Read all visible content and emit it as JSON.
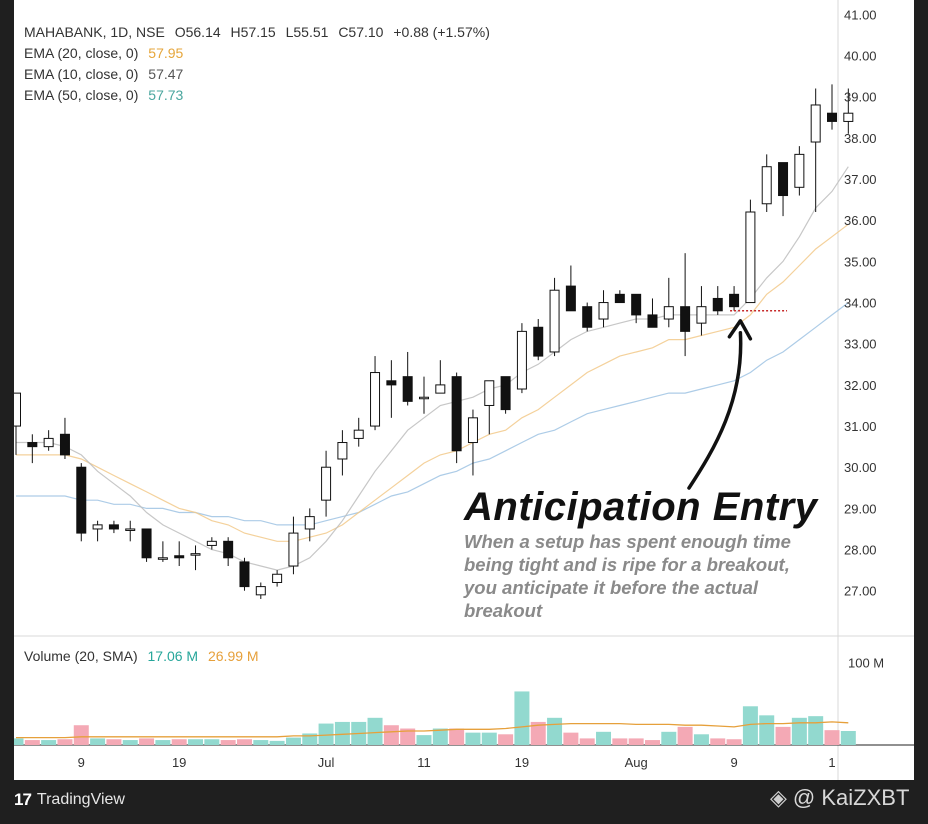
{
  "header": {
    "symbol": "MAHABANK, 1D, NSE",
    "open": "O56.14",
    "high": "H57.15",
    "low": "L55.51",
    "close": "C57.10",
    "change": "+0.88 (+1.57%)"
  },
  "ema": [
    {
      "label": "EMA (20, close, 0)",
      "value": "57.95",
      "color": "#e6a63b"
    },
    {
      "label": "EMA (10, close, 0)",
      "value": "57.47",
      "color": "#555555"
    },
    {
      "label": "EMA (50, close, 0)",
      "value": "57.73",
      "color": "#4aa69e"
    }
  ],
  "volume_legend": {
    "label": "Volume (20, SMA)",
    "v1": "17.06 M",
    "v1_color": "#26a69a",
    "v2": "26.99 M",
    "v2_color": "#e6a03b"
  },
  "annotation": {
    "title": "Anticipation Entry",
    "body": "When a setup has spent enough time being tight and is ripe for a breakout, you anticipate it before the actual breakout"
  },
  "footer": {
    "brand": "TradingView",
    "watermark": "@ KaiZXBT"
  },
  "chart_data": {
    "type": "candlestick",
    "price_axis_ticks": [
      "27.00",
      "28.00",
      "29.00",
      "30.00",
      "31.00",
      "32.00",
      "33.00",
      "34.00",
      "35.00",
      "36.00",
      "37.00",
      "38.00",
      "39.00",
      "40.00",
      "41.00"
    ],
    "price_range": [
      25.9,
      41.35
    ],
    "volume_axis_tick": "100 M",
    "x_ticks": [
      "9",
      "19",
      "Jul",
      "11",
      "19",
      "Aug",
      "9",
      "1"
    ],
    "x_tick_index": [
      4,
      10,
      19,
      25,
      31,
      38,
      44,
      50
    ],
    "candles": [
      {
        "o": 31.0,
        "h": 31.8,
        "l": 30.3,
        "c": 31.8
      },
      {
        "o": 30.6,
        "h": 30.8,
        "l": 30.1,
        "c": 30.5
      },
      {
        "o": 30.5,
        "h": 30.9,
        "l": 30.4,
        "c": 30.7
      },
      {
        "o": 30.8,
        "h": 31.2,
        "l": 30.2,
        "c": 30.3
      },
      {
        "o": 30.0,
        "h": 30.1,
        "l": 28.2,
        "c": 28.4
      },
      {
        "o": 28.5,
        "h": 28.7,
        "l": 28.2,
        "c": 28.6
      },
      {
        "o": 28.6,
        "h": 28.7,
        "l": 28.4,
        "c": 28.5
      },
      {
        "o": 28.5,
        "h": 28.7,
        "l": 28.2,
        "c": 28.5
      },
      {
        "o": 28.5,
        "h": 28.5,
        "l": 27.7,
        "c": 27.8
      },
      {
        "o": 27.8,
        "h": 28.2,
        "l": 27.7,
        "c": 27.8
      },
      {
        "o": 27.85,
        "h": 28.2,
        "l": 27.6,
        "c": 27.8
      },
      {
        "o": 27.9,
        "h": 28.1,
        "l": 27.5,
        "c": 27.9
      },
      {
        "o": 28.1,
        "h": 28.3,
        "l": 28.0,
        "c": 28.2
      },
      {
        "o": 28.2,
        "h": 28.3,
        "l": 27.6,
        "c": 27.8
      },
      {
        "o": 27.7,
        "h": 27.8,
        "l": 27.0,
        "c": 27.1
      },
      {
        "o": 26.9,
        "h": 27.2,
        "l": 26.8,
        "c": 27.1
      },
      {
        "o": 27.2,
        "h": 27.5,
        "l": 27.1,
        "c": 27.4
      },
      {
        "o": 27.6,
        "h": 28.8,
        "l": 27.4,
        "c": 28.4
      },
      {
        "o": 28.5,
        "h": 29.0,
        "l": 28.2,
        "c": 28.8
      },
      {
        "o": 29.2,
        "h": 30.4,
        "l": 28.8,
        "c": 30.0
      },
      {
        "o": 30.2,
        "h": 30.9,
        "l": 29.8,
        "c": 30.6
      },
      {
        "o": 30.7,
        "h": 31.2,
        "l": 30.5,
        "c": 30.9
      },
      {
        "o": 31.0,
        "h": 32.7,
        "l": 30.9,
        "c": 32.3
      },
      {
        "o": 32.1,
        "h": 32.6,
        "l": 31.2,
        "c": 32.0
      },
      {
        "o": 32.2,
        "h": 32.8,
        "l": 31.5,
        "c": 31.6
      },
      {
        "o": 31.7,
        "h": 32.2,
        "l": 31.3,
        "c": 31.7
      },
      {
        "o": 31.8,
        "h": 32.6,
        "l": 31.8,
        "c": 32.0
      },
      {
        "o": 32.2,
        "h": 32.3,
        "l": 30.1,
        "c": 30.4
      },
      {
        "o": 30.6,
        "h": 31.4,
        "l": 29.8,
        "c": 31.2
      },
      {
        "o": 31.5,
        "h": 32.1,
        "l": 30.8,
        "c": 32.1
      },
      {
        "o": 32.2,
        "h": 32.2,
        "l": 31.3,
        "c": 31.4
      },
      {
        "o": 31.9,
        "h": 33.5,
        "l": 31.8,
        "c": 33.3
      },
      {
        "o": 33.4,
        "h": 33.6,
        "l": 32.6,
        "c": 32.7
      },
      {
        "o": 32.8,
        "h": 34.6,
        "l": 32.7,
        "c": 34.3
      },
      {
        "o": 34.4,
        "h": 34.9,
        "l": 33.9,
        "c": 33.8
      },
      {
        "o": 33.9,
        "h": 34.0,
        "l": 33.3,
        "c": 33.4
      },
      {
        "o": 33.6,
        "h": 34.3,
        "l": 33.4,
        "c": 34.0
      },
      {
        "o": 34.2,
        "h": 34.3,
        "l": 34.0,
        "c": 34.0
      },
      {
        "o": 34.2,
        "h": 34.2,
        "l": 33.5,
        "c": 33.7
      },
      {
        "o": 33.7,
        "h": 34.1,
        "l": 33.4,
        "c": 33.4
      },
      {
        "o": 33.6,
        "h": 34.6,
        "l": 33.4,
        "c": 33.9
      },
      {
        "o": 33.9,
        "h": 35.2,
        "l": 32.7,
        "c": 33.3
      },
      {
        "o": 33.5,
        "h": 34.4,
        "l": 33.2,
        "c": 33.9
      },
      {
        "o": 34.1,
        "h": 34.4,
        "l": 33.7,
        "c": 33.8
      },
      {
        "o": 34.2,
        "h": 34.4,
        "l": 33.8,
        "c": 33.9
      },
      {
        "o": 34.0,
        "h": 36.5,
        "l": 34.0,
        "c": 36.2
      },
      {
        "o": 36.4,
        "h": 37.6,
        "l": 36.2,
        "c": 37.3
      },
      {
        "o": 37.4,
        "h": 37.4,
        "l": 36.1,
        "c": 36.6
      },
      {
        "o": 36.8,
        "h": 37.8,
        "l": 36.6,
        "c": 37.6
      },
      {
        "o": 37.9,
        "h": 39.2,
        "l": 36.2,
        "c": 38.8
      },
      {
        "o": 38.6,
        "h": 39.3,
        "l": 38.2,
        "c": 38.4
      },
      {
        "o": 38.4,
        "h": 39.2,
        "l": 38.1,
        "c": 38.6
      }
    ],
    "volume": [
      8,
      6,
      6,
      7,
      24,
      8,
      7,
      6,
      8,
      6,
      7,
      7,
      7,
      6,
      7,
      6,
      5,
      9,
      14,
      26,
      28,
      28,
      33,
      24,
      20,
      12,
      20,
      20,
      15,
      15,
      13,
      65,
      28,
      33,
      15,
      8,
      16,
      8,
      8,
      6,
      16,
      22,
      13,
      8,
      7,
      47,
      36,
      22,
      33,
      35,
      18,
      17
    ],
    "volume_max": 125,
    "volume_sma": [
      9,
      9,
      9,
      9,
      10,
      10,
      10,
      10,
      10,
      10,
      10,
      10,
      10,
      10,
      10,
      10,
      10,
      11,
      11,
      12,
      13,
      14,
      15,
      16,
      17,
      17,
      18,
      19,
      19,
      19,
      20,
      22,
      24,
      25,
      26,
      26,
      26,
      26,
      25,
      25,
      25,
      24,
      24,
      23,
      22,
      25,
      26,
      26,
      27,
      27,
      28,
      27
    ],
    "ema10": [
      30.6,
      30.6,
      30.6,
      30.5,
      30.3,
      29.9,
      29.6,
      29.3,
      28.9,
      28.6,
      28.4,
      28.2,
      28.0,
      27.9,
      27.7,
      27.6,
      27.5,
      27.6,
      27.8,
      28.2,
      28.7,
      29.3,
      29.9,
      30.4,
      30.9,
      31.2,
      31.5,
      31.6,
      31.7,
      31.9,
      32.0,
      32.3,
      32.5,
      32.8,
      33.1,
      33.3,
      33.4,
      33.5,
      33.6,
      33.6,
      33.7,
      33.7,
      33.7,
      33.7,
      33.7,
      34.1,
      34.6,
      35.0,
      35.6,
      36.3,
      36.7,
      37.3
    ],
    "ema20": [
      30.3,
      30.3,
      30.3,
      30.3,
      30.2,
      30.0,
      29.8,
      29.6,
      29.4,
      29.2,
      29.0,
      28.9,
      28.7,
      28.6,
      28.4,
      28.3,
      28.2,
      28.2,
      28.3,
      28.4,
      28.6,
      28.9,
      29.2,
      29.5,
      29.8,
      30.1,
      30.3,
      30.4,
      30.6,
      30.8,
      30.9,
      31.2,
      31.4,
      31.7,
      32.0,
      32.3,
      32.5,
      32.7,
      32.8,
      32.9,
      33.1,
      33.1,
      33.2,
      33.3,
      33.4,
      33.7,
      34.2,
      34.5,
      34.9,
      35.3,
      35.6,
      35.9
    ],
    "ema50": [
      29.3,
      29.3,
      29.3,
      29.3,
      29.2,
      29.2,
      29.1,
      29.1,
      29.0,
      29.0,
      28.9,
      28.9,
      28.8,
      28.8,
      28.7,
      28.7,
      28.6,
      28.6,
      28.6,
      28.7,
      28.8,
      28.9,
      29.1,
      29.3,
      29.4,
      29.6,
      29.8,
      29.9,
      30.1,
      30.2,
      30.4,
      30.6,
      30.8,
      30.9,
      31.1,
      31.3,
      31.4,
      31.5,
      31.6,
      31.7,
      31.8,
      31.8,
      31.9,
      32.0,
      32.1,
      32.3,
      32.6,
      32.8,
      33.1,
      33.4,
      33.7,
      34.0
    ],
    "entry_marker_price": 33.8,
    "entry_marker_index": [
      44,
      47
    ]
  }
}
